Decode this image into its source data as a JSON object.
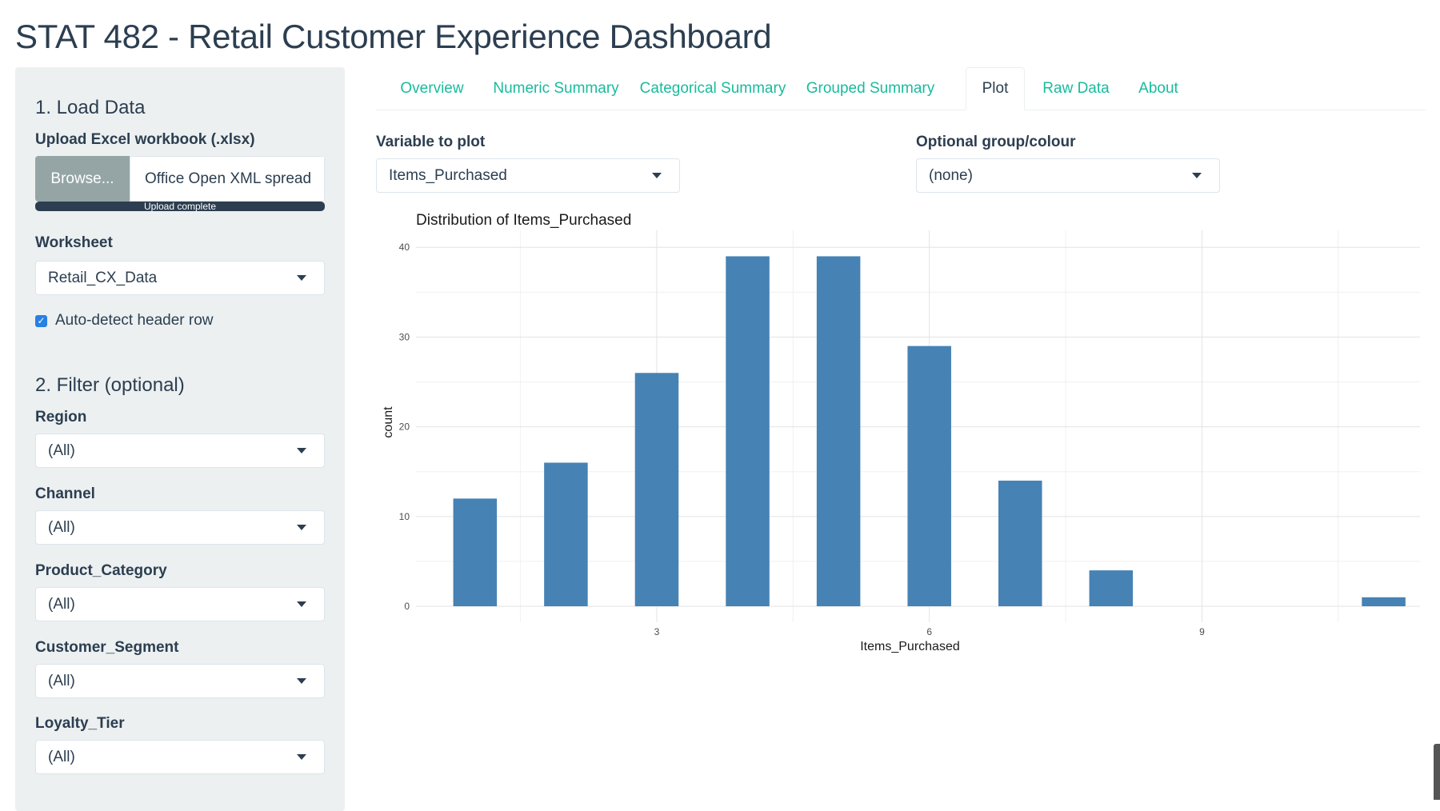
{
  "app": {
    "title": "STAT 482 - Retail Customer Experience Dashboard"
  },
  "sidebar": {
    "load_title": "1. Load Data",
    "upload_label": "Upload Excel workbook (.xlsx)",
    "browse_label": "Browse...",
    "file_name": "Office Open XML spread",
    "progress_text": "Upload complete",
    "progress_fraction": 1.0,
    "worksheet_label": "Worksheet",
    "worksheet_value": "Retail_CX_Data",
    "header_checkbox_label": "Auto-detect header row",
    "header_checkbox_checked": true,
    "filter_title": "2. Filter (optional)",
    "filters": [
      {
        "label": "Region",
        "value": "(All)"
      },
      {
        "label": "Channel",
        "value": "(All)"
      },
      {
        "label": "Product_Category",
        "value": "(All)"
      },
      {
        "label": "Customer_Segment",
        "value": "(All)"
      },
      {
        "label": "Loyalty_Tier",
        "value": "(All)"
      }
    ]
  },
  "tabs": [
    {
      "label": "Overview",
      "active": false
    },
    {
      "label": "Numeric Summary",
      "active": false
    },
    {
      "label": "Categorical Summary",
      "active": false
    },
    {
      "label": "Grouped Summary",
      "active": false
    },
    {
      "label": "Plot",
      "active": true
    },
    {
      "label": "Raw Data",
      "active": false
    },
    {
      "label": "About",
      "active": false
    }
  ],
  "plot_controls": {
    "variable_label": "Variable to plot",
    "variable_value": "Items_Purchased",
    "group_label": "Optional group/colour",
    "group_value": "(none)"
  },
  "colors": {
    "bar": "#4682b4",
    "accent": "#18bc9c",
    "primary": "#2c3e50",
    "sidebar_bg": "#ecf0f1"
  },
  "chart_data": {
    "type": "bar",
    "title": "Distribution of Items_Purchased",
    "xlabel": "Items_Purchased",
    "ylabel": "count",
    "x": [
      1,
      2,
      3,
      4,
      5,
      6,
      7,
      8,
      9,
      10,
      11
    ],
    "values": [
      12,
      16,
      26,
      39,
      39,
      29,
      14,
      4,
      0,
      0,
      1
    ],
    "x_ticks": [
      3,
      6,
      9
    ],
    "y_ticks": [
      0,
      10,
      20,
      30,
      40
    ],
    "xlim": [
      0.35,
      11.4
    ],
    "ylim": [
      0,
      41
    ],
    "grid": true,
    "legend": "none"
  }
}
